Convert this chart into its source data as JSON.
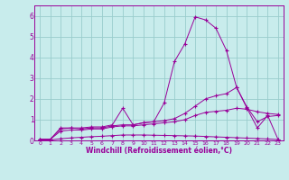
{
  "xlabel": "Windchill (Refroidissement éolien,°C)",
  "bg_color": "#c8ecec",
  "line_color": "#990099",
  "grid_color": "#99cccc",
  "xlim": [
    -0.5,
    23.5
  ],
  "ylim": [
    0,
    6.5
  ],
  "yticks": [
    0,
    1,
    2,
    3,
    4,
    5,
    6
  ],
  "xticks": [
    0,
    1,
    2,
    3,
    4,
    5,
    6,
    7,
    8,
    9,
    10,
    11,
    12,
    13,
    14,
    15,
    16,
    17,
    18,
    19,
    20,
    21,
    22,
    23
  ],
  "lines": [
    {
      "x": [
        0,
        1,
        2,
        3,
        4,
        5,
        6,
        7,
        8,
        9,
        10,
        11,
        12,
        13,
        14,
        15,
        16,
        17,
        18,
        19,
        20,
        21,
        22,
        23
      ],
      "y": [
        0.05,
        0.05,
        0.6,
        0.6,
        0.6,
        0.65,
        0.65,
        0.75,
        1.55,
        0.75,
        0.85,
        0.9,
        1.8,
        3.8,
        4.65,
        5.95,
        5.8,
        5.4,
        4.35,
        2.55,
        1.55,
        0.6,
        1.2,
        0.05
      ]
    },
    {
      "x": [
        0,
        1,
        2,
        3,
        4,
        5,
        6,
        7,
        8,
        9,
        10,
        11,
        12,
        13,
        14,
        15,
        16,
        17,
        18,
        19,
        20,
        21,
        22,
        23
      ],
      "y": [
        0.05,
        0.05,
        0.55,
        0.6,
        0.55,
        0.6,
        0.6,
        0.7,
        0.75,
        0.75,
        0.85,
        0.9,
        0.95,
        1.05,
        1.3,
        1.65,
        2.0,
        2.15,
        2.25,
        2.55,
        1.6,
        0.9,
        1.15,
        1.2
      ]
    },
    {
      "x": [
        0,
        1,
        2,
        3,
        4,
        5,
        6,
        7,
        8,
        9,
        10,
        11,
        12,
        13,
        14,
        15,
        16,
        17,
        18,
        19,
        20,
        21,
        22,
        23
      ],
      "y": [
        0.05,
        0.05,
        0.45,
        0.5,
        0.5,
        0.55,
        0.55,
        0.65,
        0.7,
        0.7,
        0.75,
        0.8,
        0.85,
        0.9,
        1.0,
        1.2,
        1.35,
        1.4,
        1.45,
        1.55,
        1.5,
        1.38,
        1.3,
        1.25
      ]
    },
    {
      "x": [
        0,
        1,
        2,
        3,
        4,
        5,
        6,
        7,
        8,
        9,
        10,
        11,
        12,
        13,
        14,
        15,
        16,
        17,
        18,
        19,
        20,
        21,
        22,
        23
      ],
      "y": [
        0.02,
        0.02,
        0.08,
        0.12,
        0.15,
        0.18,
        0.2,
        0.23,
        0.26,
        0.26,
        0.26,
        0.25,
        0.24,
        0.23,
        0.22,
        0.21,
        0.19,
        0.17,
        0.15,
        0.13,
        0.11,
        0.09,
        0.07,
        0.04
      ]
    }
  ]
}
